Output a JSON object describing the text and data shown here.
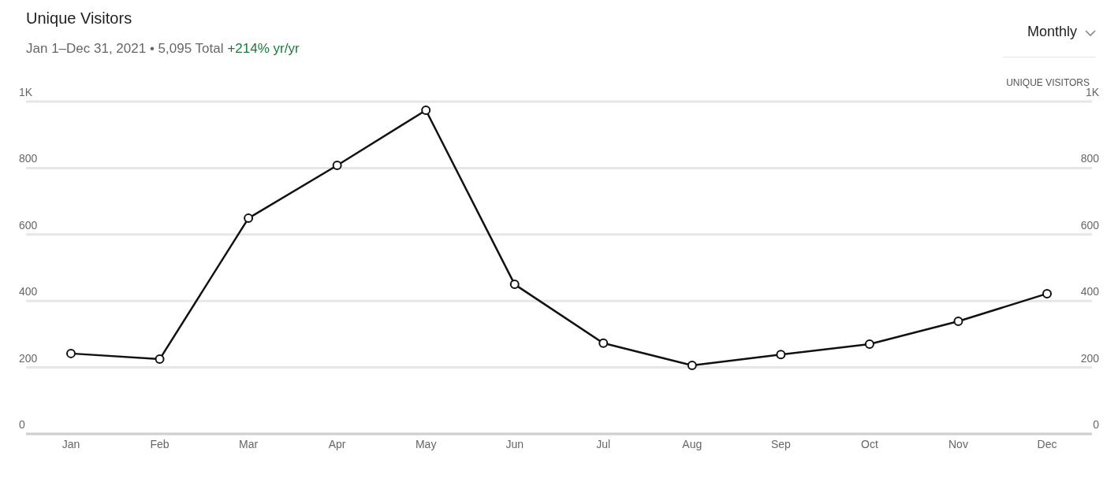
{
  "chart_data": {
    "type": "line",
    "title": "Unique Visitors",
    "subtitle": "Jan 1–Dec 31, 2021 • 5,095 Total",
    "annotations": [
      "+214% yr/yr",
      "Monthly"
    ],
    "y2label": "UNIQUE VISITORS",
    "categories": [
      "Jan",
      "Feb",
      "Mar",
      "Apr",
      "May",
      "Jun",
      "Jul",
      "Aug",
      "Sep",
      "Oct",
      "Nov",
      "Dec"
    ],
    "series": [
      {
        "color": "#111111",
        "values": [
          242,
          225,
          649,
          808,
          974,
          450,
          273,
          206,
          239,
          270,
          339,
          422
        ]
      }
    ],
    "ylim": [
      0,
      1000
    ],
    "yticks": [
      0,
      200,
      400,
      600,
      800,
      {
        "value": 1000,
        "label": "1K"
      }
    ],
    "y2lim": [
      0,
      1000
    ],
    "y2ticks": [
      0,
      200,
      400,
      600,
      800,
      {
        "value": 1000,
        "label": "1K"
      }
    ],
    "grid": "y",
    "marker": "circle",
    "line_style": "solid"
  }
}
